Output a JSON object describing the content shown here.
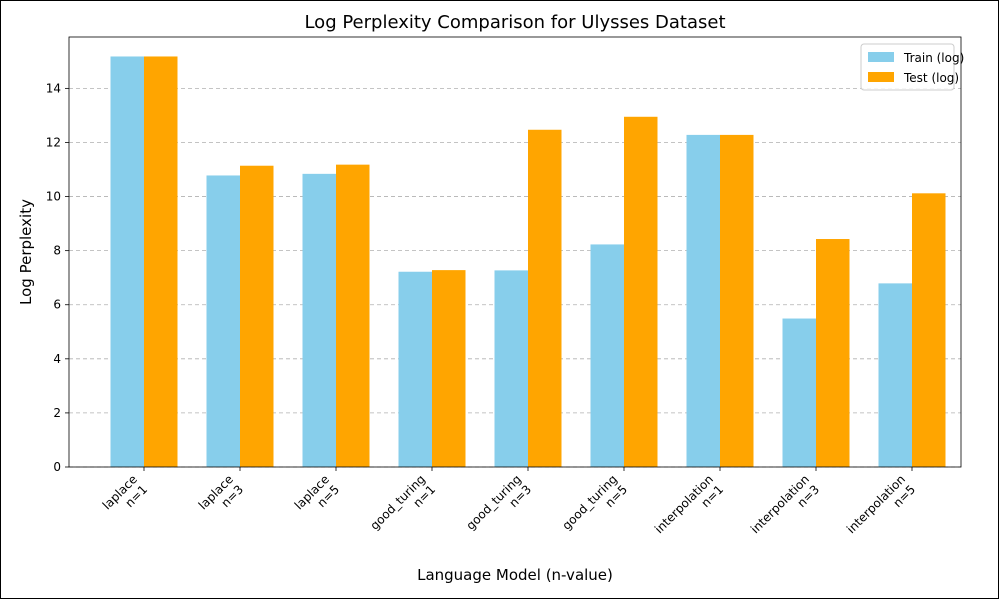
{
  "chart_data": {
    "type": "bar",
    "title": "Log Perplexity Comparison for Ulysses Dataset",
    "xlabel": "Language Model (n-value)",
    "ylabel": "Log Perplexity",
    "categories": [
      {
        "line1": "laplace",
        "line2": "n=1"
      },
      {
        "line1": "laplace",
        "line2": "n=3"
      },
      {
        "line1": "laplace",
        "line2": "n=5"
      },
      {
        "line1": "good_turing",
        "line2": "n=1"
      },
      {
        "line1": "good_turing",
        "line2": "n=3"
      },
      {
        "line1": "good_turing",
        "line2": "n=5"
      },
      {
        "line1": "interpolation",
        "line2": "n=1"
      },
      {
        "line1": "interpolation",
        "line2": "n=3"
      },
      {
        "line1": "interpolation",
        "line2": "n=5"
      }
    ],
    "series": [
      {
        "name": "Train (log)",
        "color": "#87CEEB",
        "values": [
          15.18,
          10.78,
          10.84,
          7.22,
          7.27,
          8.23,
          12.28,
          5.49,
          6.79
        ]
      },
      {
        "name": "Test (log)",
        "color": "#FFA500",
        "values": [
          15.18,
          11.14,
          11.18,
          7.28,
          12.47,
          12.95,
          12.28,
          8.43,
          10.12
        ]
      }
    ],
    "ylim": [
      0,
      15.9
    ],
    "yticks": [
      0,
      2,
      4,
      6,
      8,
      10,
      12,
      14
    ],
    "grid": "y-dashed",
    "legend_position": "top-right"
  }
}
